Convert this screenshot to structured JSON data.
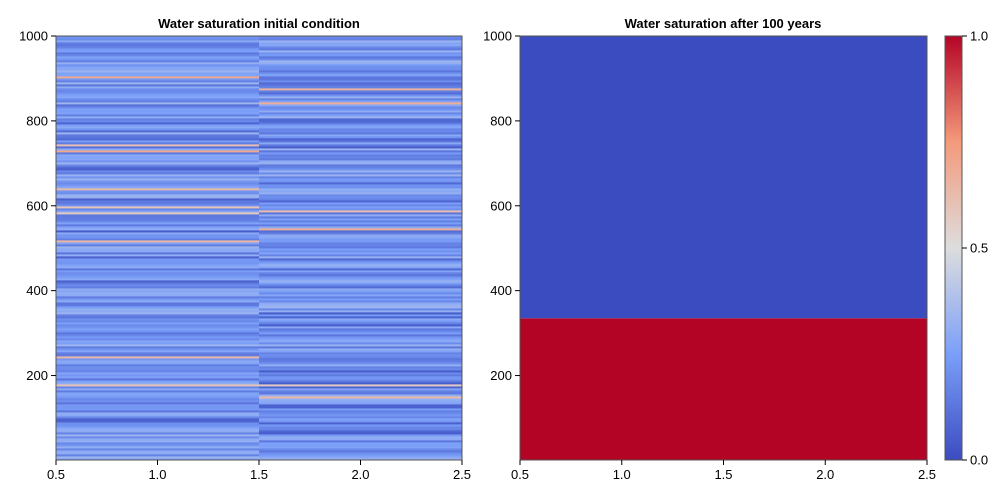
{
  "chart_data": [
    {
      "type": "heatmap",
      "title": "Water saturation initial condition",
      "xlabel": "",
      "ylabel": "",
      "xlim": [
        0.5,
        2.5
      ],
      "ylim": [
        1,
        1000
      ],
      "x_ticks": [
        "0.5",
        "1.0",
        "1.5",
        "2.0",
        "2.5"
      ],
      "y_ticks": [
        "200",
        "400",
        "600",
        "800",
        "1000"
      ],
      "columns": [
        1,
        2
      ],
      "rows": 1000,
      "value_range": [
        0.0,
        1.0
      ],
      "description_values": "Two columns of horizontally layered saturation values, mostly between 0.1 and 0.35 with sparse higher values near 0.6"
    },
    {
      "type": "heatmap",
      "title": "Water saturation after 100 years",
      "xlabel": "",
      "ylabel": "",
      "xlim": [
        0.5,
        2.5
      ],
      "ylim": [
        1,
        1000
      ],
      "x_ticks": [
        "0.5",
        "1.0",
        "1.5",
        "2.0",
        "2.5"
      ],
      "y_ticks": [
        "200",
        "400",
        "600",
        "800",
        "1000"
      ],
      "regions": [
        {
          "y_from": 1,
          "y_to": 335,
          "value": 1.0
        },
        {
          "y_from": 335,
          "y_to": 1000,
          "value": 0.0
        }
      ]
    }
  ],
  "colorbar": {
    "colormap": "coolwarm",
    "range": [
      0.0,
      1.0
    ],
    "ticks": [
      "0.0",
      "0.5",
      "1.0"
    ],
    "colors": {
      "low": "#3b4cc0",
      "mid": "#dddddd",
      "high": "#b40426"
    }
  }
}
